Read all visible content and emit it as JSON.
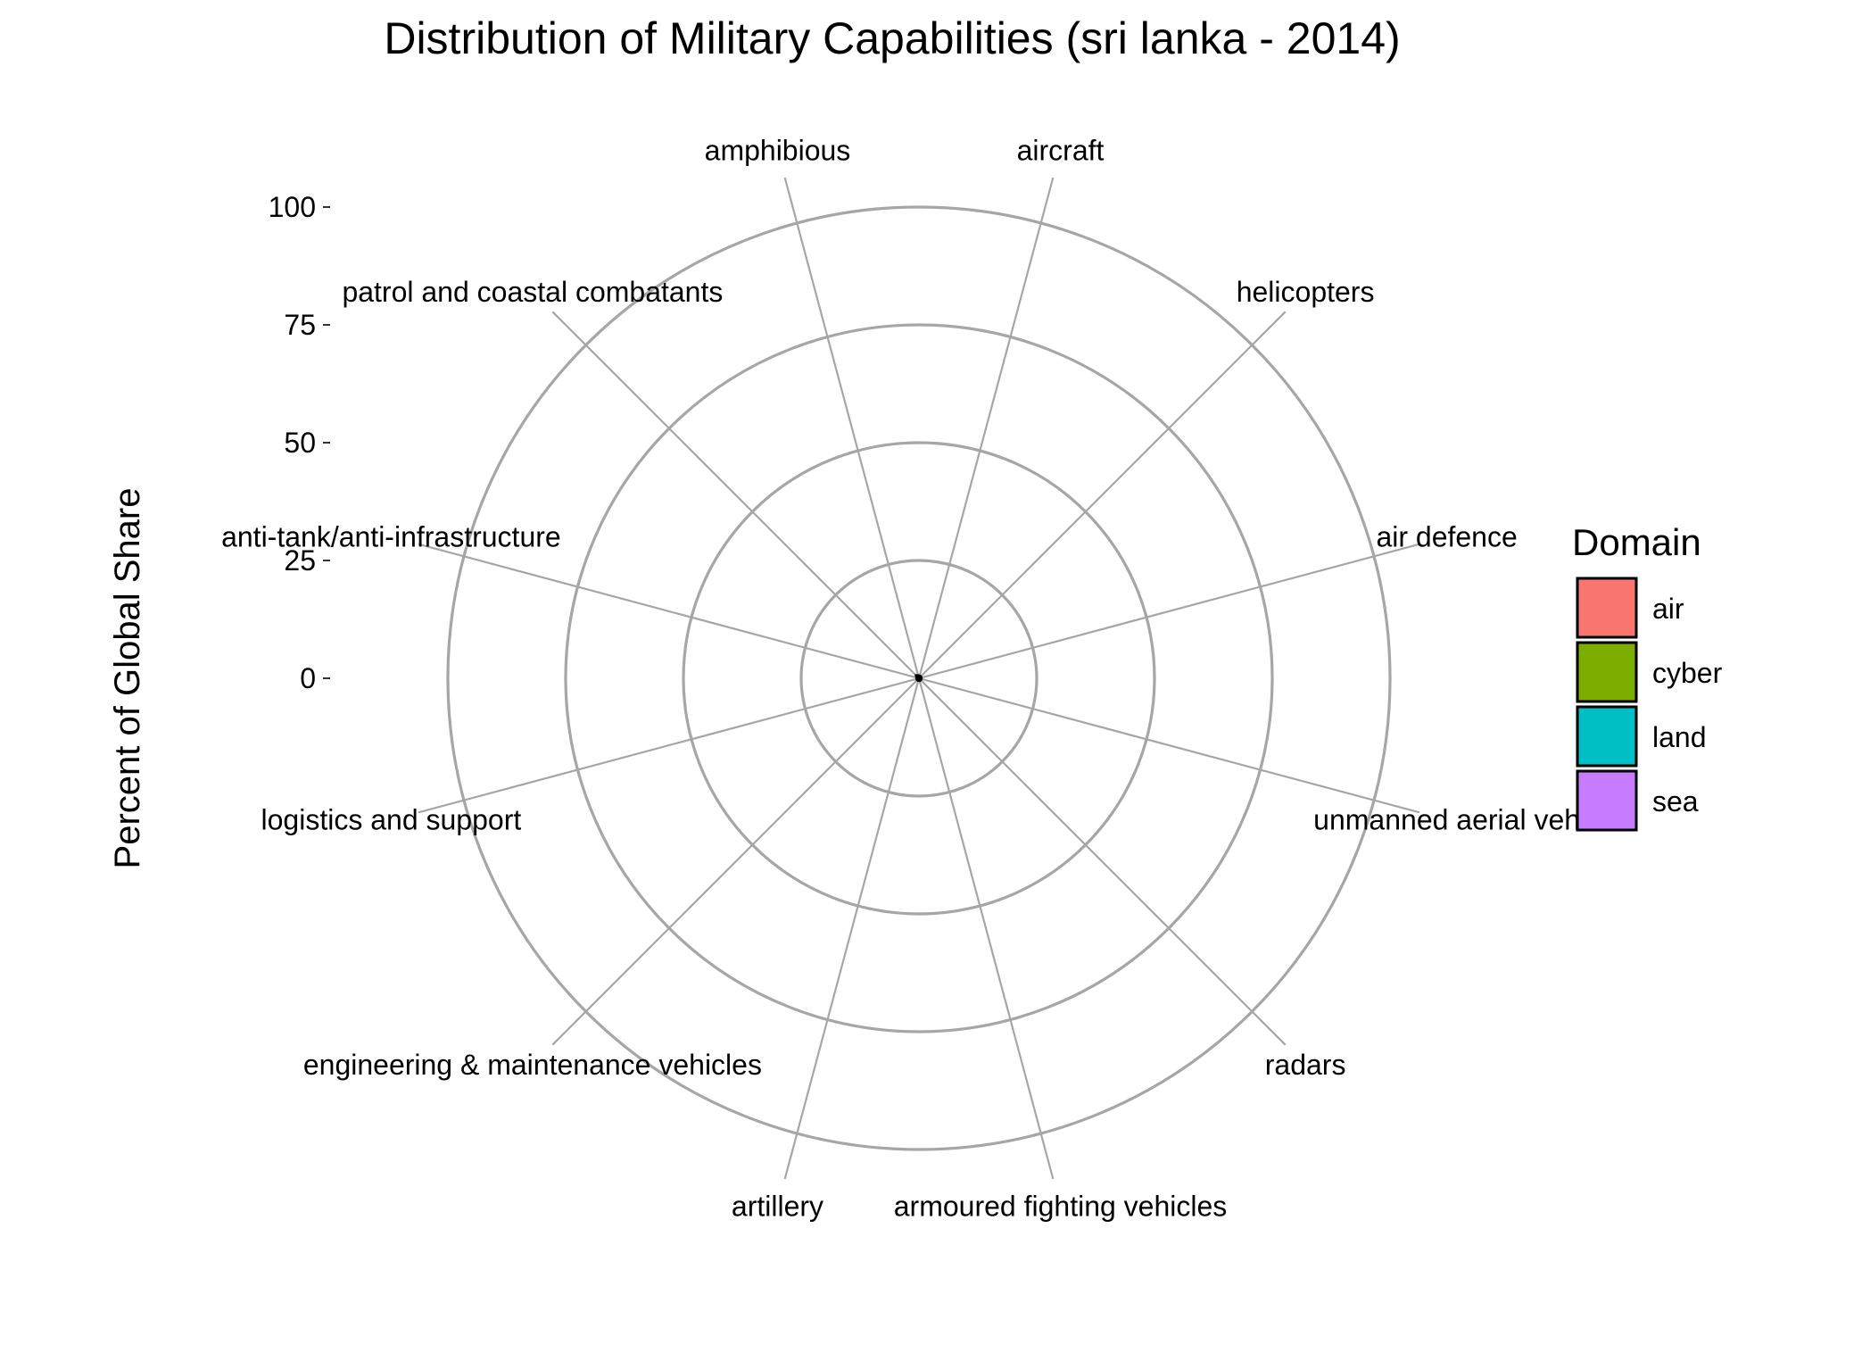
{
  "chart_data": {
    "type": "radar",
    "title": "Distribution of Military Capabilities (sri lanka - 2014)",
    "ylabel": "Percent of Global Share",
    "xlabel": "",
    "ylim": [
      0,
      100
    ],
    "yticks": [
      0,
      25,
      50,
      75,
      100
    ],
    "categories": [
      "aircraft",
      "helicopters",
      "air defence",
      "unmanned aerial veh",
      "radars",
      "armoured fighting vehicles",
      "artillery",
      "engineering & maintenance vehicles",
      "logistics and support",
      "anti-tank/anti-infrastructure",
      "patrol and coastal combatants",
      "amphibious"
    ],
    "series": [
      {
        "values": [
          0.5,
          0.5,
          0.3,
          0.2,
          0.2,
          0.5,
          0.4,
          0.2,
          0.3,
          0.4,
          0.8,
          0.6
        ]
      }
    ],
    "legend": {
      "title": "Domain",
      "placement": "right",
      "items": [
        {
          "label": "air",
          "color": "#F8766D"
        },
        {
          "label": "cyber",
          "color": "#7CAE00"
        },
        {
          "label": "land",
          "color": "#00BFC4"
        },
        {
          "label": "sea",
          "color": "#C77CFF"
        }
      ]
    },
    "grid": true,
    "grid_color": "#a6a6a6",
    "data_color": "#000000"
  }
}
